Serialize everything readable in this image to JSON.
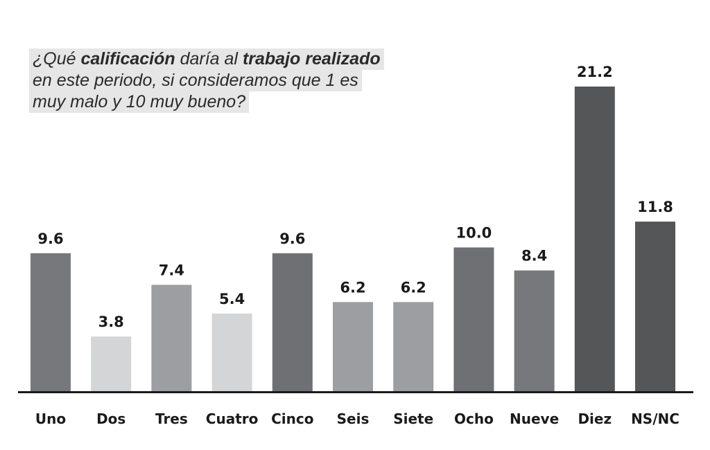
{
  "question": {
    "line1": [
      {
        "text": "¿Qué ",
        "bold": false
      },
      {
        "text": "calificación",
        "bold": true
      },
      {
        "text": " daría al ",
        "bold": false
      },
      {
        "text": "trabajo realizado",
        "bold": true
      }
    ],
    "line2": "en este periodo, si consideramos que 1 es",
    "line3": "muy malo y 10 muy bueno?"
  },
  "chart_data": {
    "type": "bar",
    "title": "¿Qué calificación daría al trabajo realizado en este periodo, si consideramos que 1 es muy malo y 10 muy bueno?",
    "categories": [
      "Uno",
      "Dos",
      "Tres",
      "Cuatro",
      "Cinco",
      "Seis",
      "Siete",
      "Ocho",
      "Nueve",
      "Diez",
      "NS/NC"
    ],
    "values": [
      9.6,
      3.8,
      7.4,
      5.4,
      9.6,
      6.2,
      6.2,
      10.0,
      8.4,
      21.2,
      11.8
    ],
    "value_labels": [
      "9.6",
      "3.8",
      "7.4",
      "5.4",
      "9.6",
      "6.2",
      "6.2",
      "10.0",
      "8.4",
      "21.2",
      "11.8"
    ],
    "bar_colors": [
      "#77787b",
      "#d4d5d6",
      "#9d9ea1",
      "#d4d5d6",
      "#6f7073",
      "#9d9ea1",
      "#9d9ea1",
      "#6f7073",
      "#77787b",
      "#555658",
      "#555658"
    ],
    "ylim": [
      0,
      21.2
    ],
    "grid": false,
    "legend": "none",
    "axis_color": "#1a1a1a"
  }
}
